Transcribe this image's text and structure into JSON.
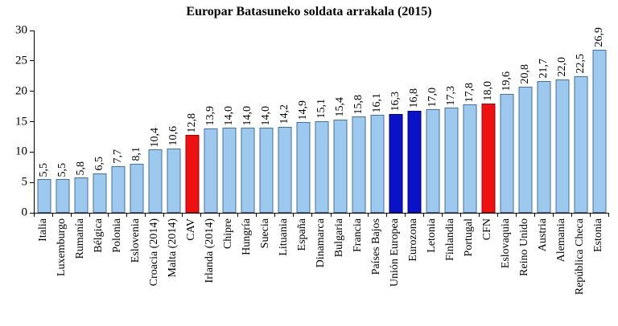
{
  "chart_data": {
    "type": "bar",
    "title": "Europar Batasuneko soldata arrakala (2015)",
    "xlabel": "",
    "ylabel": "",
    "ylim": [
      0,
      30
    ],
    "yticks": [
      0,
      5,
      10,
      15,
      20,
      25,
      30
    ],
    "grid": false,
    "legend": "none",
    "categories": [
      "Italia",
      "Luxemburgo",
      "Rumanía",
      "Bélgica",
      "Polonia",
      "Eslovenia",
      "Croacia (2014)",
      "Malta (2014)",
      "CAV",
      "Irlanda (2014)",
      "Chipre",
      "Hungría",
      "Suecia",
      "Lituania",
      "España",
      "Dinamarca",
      "Bulgaria",
      "Francia",
      "Países Bajos",
      "Unión Europea",
      "Eurozona",
      "Letonia",
      "Finlandia",
      "Portugal",
      "CFN",
      "Eslovaquia",
      "Reino Unido",
      "Austria",
      "Alemania",
      "República Checa",
      "Estonia"
    ],
    "values": [
      5.5,
      5.5,
      5.8,
      6.5,
      7.7,
      8.1,
      10.4,
      10.6,
      12.8,
      13.9,
      14.0,
      14.0,
      14.0,
      14.2,
      14.9,
      15.1,
      15.4,
      15.8,
      16.1,
      16.3,
      16.8,
      17.0,
      17.3,
      17.8,
      18.0,
      19.6,
      20.8,
      21.7,
      22.0,
      22.5,
      26.9
    ],
    "values_display": [
      "5,5",
      "5,5",
      "5,8",
      "6,5",
      "7,7",
      "8,1",
      "10,4",
      "10,6",
      "12,8",
      "13,9",
      "14,0",
      "14,0",
      "14,0",
      "14,2",
      "14,9",
      "15,1",
      "15,4",
      "15,8",
      "16,1",
      "16,3",
      "16,8",
      "17,0",
      "17,3",
      "17,8",
      "18,0",
      "19,6",
      "20,8",
      "21,7",
      "22,0",
      "22,5",
      "26,9"
    ],
    "bar_colors": [
      "default",
      "default",
      "default",
      "default",
      "default",
      "default",
      "default",
      "default",
      "red",
      "default",
      "default",
      "default",
      "default",
      "default",
      "default",
      "default",
      "default",
      "default",
      "default",
      "blue",
      "blue",
      "default",
      "default",
      "default",
      "red",
      "default",
      "default",
      "default",
      "default",
      "default",
      "default"
    ],
    "palette": {
      "default": "#9DC9EE",
      "default_border": "#41719C",
      "red": "#EE1111",
      "red_border": "#A40000",
      "blue": "#0A12C8",
      "blue_border": "#000080"
    }
  }
}
